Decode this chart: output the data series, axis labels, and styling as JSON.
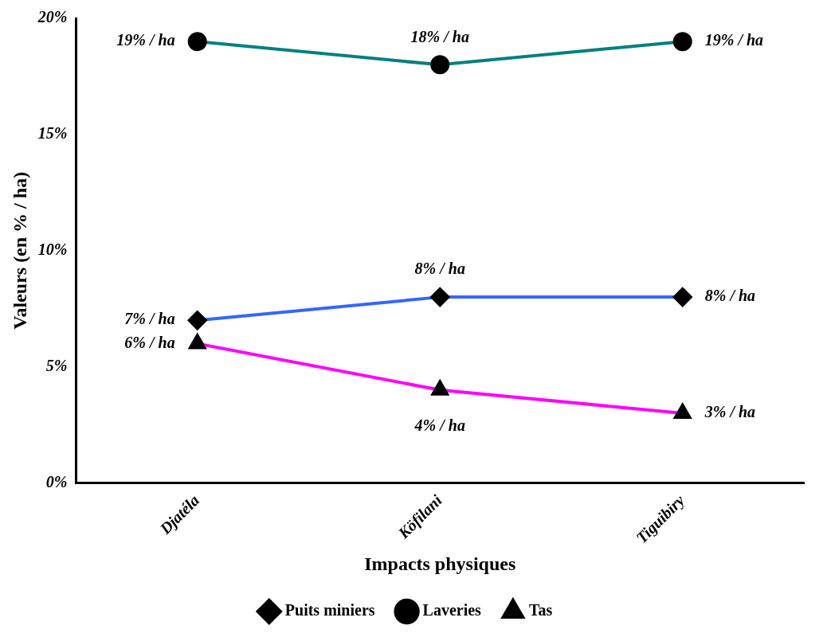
{
  "chart_data": {
    "type": "line",
    "xlabel": "Impacts physiques",
    "ylabel": "Valeurs (en % / ha)",
    "categories": [
      "Djatéla",
      "Köfilani",
      "Tiguibiry"
    ],
    "series": [
      {
        "name": "Puits miniers",
        "color": "#3366ff",
        "marker": "diamond",
        "values": [
          7,
          8,
          8
        ],
        "value_labels": [
          "7% / ha",
          "8% / ha",
          "8% / ha"
        ]
      },
      {
        "name": "Laveries",
        "color": "#008080",
        "marker": "circle",
        "values": [
          19,
          18,
          19
        ],
        "value_labels": [
          "19% / ha",
          "18% / ha",
          "19% / ha"
        ]
      },
      {
        "name": "Tas",
        "color": "#ff00ff",
        "marker": "triangle",
        "values": [
          6,
          4,
          3
        ],
        "value_labels": [
          "6% / ha",
          "4% / ha",
          "3% / ha"
        ]
      }
    ],
    "ylim": [
      0,
      20
    ],
    "yticks": [
      {
        "value": 0,
        "label": "0%"
      },
      {
        "value": 5,
        "label": "5%"
      },
      {
        "value": 10,
        "label": "10%"
      },
      {
        "value": 15,
        "label": "15%"
      },
      {
        "value": 20,
        "label": "20%"
      }
    ],
    "grid": false,
    "legend": "bottom",
    "line_style": "solid"
  }
}
